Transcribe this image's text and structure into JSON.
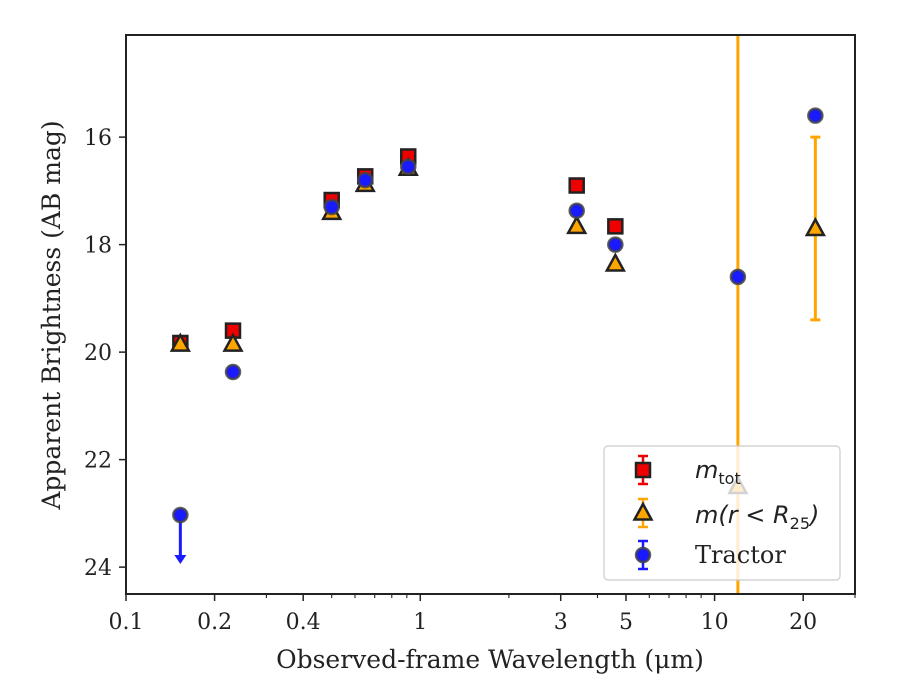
{
  "chart_data": {
    "type": "scatter",
    "xlabel": "Observed-frame Wavelength (μm)",
    "ylabel": "Apparent Brightness (AB mag)",
    "xscale": "log",
    "xlim": [
      0.1,
      30
    ],
    "ylim": [
      24.5,
      14.1
    ],
    "y_inverted": true,
    "xticks": [
      {
        "value": 0.1,
        "label": "0.1"
      },
      {
        "value": 0.2,
        "label": "0.2"
      },
      {
        "value": 0.4,
        "label": "0.4"
      },
      {
        "value": 1,
        "label": "1"
      },
      {
        "value": 3,
        "label": "3"
      },
      {
        "value": 5,
        "label": "5"
      },
      {
        "value": 10,
        "label": "10"
      },
      {
        "value": 20,
        "label": "20"
      }
    ],
    "yticks": [
      {
        "value": 16,
        "label": "16"
      },
      {
        "value": 18,
        "label": "18"
      },
      {
        "value": 20,
        "label": "20"
      },
      {
        "value": 22,
        "label": "22"
      },
      {
        "value": 24,
        "label": "24"
      }
    ],
    "legend": {
      "placement": "lower-right",
      "entries": [
        {
          "series": "mtot",
          "label_main": "m",
          "label_sub": "tot"
        },
        {
          "series": "mr25",
          "label_main": "m(r < R",
          "label_sub": "25",
          "label_end": ")"
        },
        {
          "series": "tractor",
          "label_main": "Tractor"
        }
      ]
    },
    "series": [
      {
        "key": "mtot",
        "marker": "square",
        "face_color": "#ee0000",
        "edge_color": "#222222",
        "error_color": "#ee0000",
        "points": [
          {
            "x": 0.153,
            "y": 19.83
          },
          {
            "x": 0.231,
            "y": 19.6
          },
          {
            "x": 0.5,
            "y": 17.17
          },
          {
            "x": 0.65,
            "y": 16.73
          },
          {
            "x": 0.91,
            "y": 16.36
          },
          {
            "x": 3.4,
            "y": 16.9
          },
          {
            "x": 4.6,
            "y": 17.66
          }
        ]
      },
      {
        "key": "mr25",
        "marker": "triangle",
        "face_color": "#ffa500",
        "edge_color": "#222222",
        "error_color": "#ffa500",
        "points": [
          {
            "x": 0.153,
            "y": 19.85
          },
          {
            "x": 0.231,
            "y": 19.85
          },
          {
            "x": 0.5,
            "y": 17.4
          },
          {
            "x": 0.65,
            "y": 16.88
          },
          {
            "x": 0.91,
            "y": 16.58
          },
          {
            "x": 3.4,
            "y": 17.66
          },
          {
            "x": 4.6,
            "y": 18.36
          },
          {
            "x": 12.0,
            "y": 22.5,
            "yerr_low": 8.5,
            "yerr_high": 8.5
          },
          {
            "x": 22.0,
            "y": 17.7,
            "yerr_low": 1.7,
            "yerr_high": 1.7
          }
        ]
      },
      {
        "key": "tractor",
        "marker": "circle",
        "face_color": "#1a1aff",
        "edge_color": "#444444",
        "error_color": "#1a1aff",
        "points": [
          {
            "x": 0.153,
            "y": 23.03,
            "upper_limit": true
          },
          {
            "x": 0.231,
            "y": 20.37
          },
          {
            "x": 0.5,
            "y": 17.3
          },
          {
            "x": 0.65,
            "y": 16.8
          },
          {
            "x": 0.91,
            "y": 16.55
          },
          {
            "x": 3.4,
            "y": 17.37
          },
          {
            "x": 4.6,
            "y": 18.0
          },
          {
            "x": 12.0,
            "y": 18.6
          },
          {
            "x": 22.0,
            "y": 15.6
          }
        ]
      }
    ]
  }
}
